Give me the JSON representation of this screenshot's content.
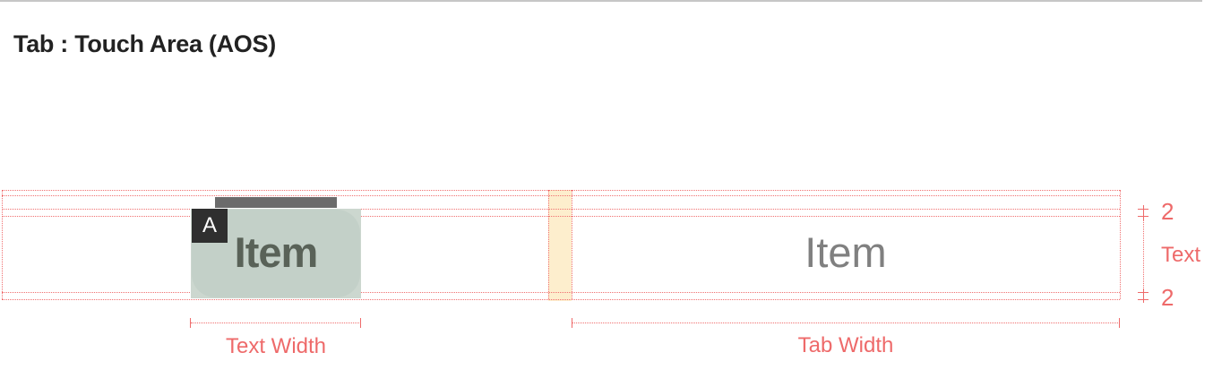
{
  "header": {
    "title": "Tab : Touch Area (AOS)"
  },
  "tabs": {
    "selected_label": "Item",
    "unselected_label": "Item",
    "badge": "A"
  },
  "annotations": {
    "text_width": "Text Width",
    "tab_width": "Tab Width",
    "top_padding": "2",
    "text_height": "Text",
    "bottom_padding": "2"
  },
  "colors": {
    "guide": "#ee6a6a",
    "touch_area": "#c3d0c8",
    "indicator": "#6b6b6b",
    "gap": "#fdeecd"
  }
}
